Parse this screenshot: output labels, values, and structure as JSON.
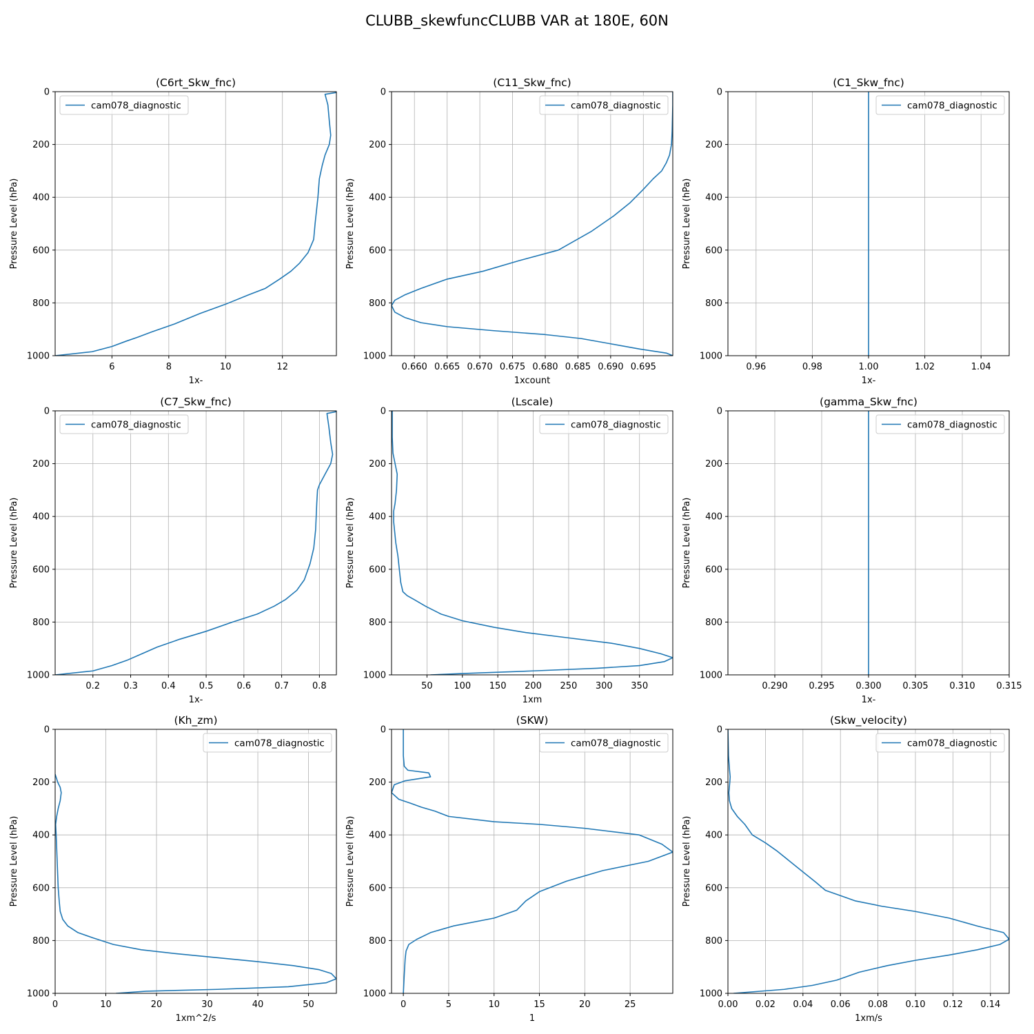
{
  "figure": {
    "title": "CLUBB_skewfuncCLUBB VAR at 180E, 60N"
  },
  "colors": {
    "series": "#1f77b4",
    "grid": "#b0b0b0",
    "legend_border": "#cccccc"
  },
  "chart_data": [
    {
      "type": "line",
      "title": "(C6rt_Skw_fnc)",
      "xlabel": "1x-",
      "ylabel": "Pressure Level (hPa)",
      "xlim": [
        4.0,
        13.9
      ],
      "ylim": [
        1000,
        0
      ],
      "y_inverted": true,
      "grid": true,
      "legend_position": "upper left",
      "xticks": [
        6,
        8,
        10,
        12
      ],
      "xtick_labels": [
        "6",
        "8",
        "10",
        "12"
      ],
      "yticks": [
        0,
        200,
        400,
        600,
        800,
        1000
      ],
      "ytick_labels": [
        "0",
        "200",
        "400",
        "600",
        "800",
        "1000"
      ],
      "series": [
        {
          "name": "cam078_diagnostic",
          "x": [
            13.9,
            13.5,
            13.6,
            13.65,
            13.7,
            13.65,
            13.5,
            13.4,
            13.3,
            13.25,
            13.2,
            13.15,
            13.1,
            12.9,
            12.6,
            12.3,
            11.9,
            11.4,
            10.8,
            10.0,
            9.1,
            8.2,
            7.4,
            6.9,
            6.5,
            6.0,
            5.3,
            4.0
          ],
          "y": [
            3,
            10,
            50,
            110,
            165,
            200,
            240,
            280,
            330,
            400,
            450,
            500,
            560,
            610,
            650,
            680,
            710,
            745,
            770,
            805,
            840,
            880,
            910,
            930,
            945,
            965,
            985,
            1000
          ]
        }
      ]
    },
    {
      "type": "line",
      "title": "(C11_Skw_fnc)",
      "xlabel": "1xcount",
      "ylabel": "Pressure Level (hPa)",
      "xlim": [
        0.6565,
        0.6995
      ],
      "ylim": [
        1000,
        0
      ],
      "y_inverted": true,
      "grid": true,
      "legend_position": "upper right",
      "xticks": [
        0.66,
        0.665,
        0.67,
        0.675,
        0.68,
        0.685,
        0.69,
        0.695
      ],
      "xtick_labels": [
        "0.660",
        "0.665",
        "0.670",
        "0.675",
        "0.680",
        "0.685",
        "0.690",
        "0.695"
      ],
      "yticks": [
        0,
        200,
        400,
        600,
        800,
        1000
      ],
      "ytick_labels": [
        "0",
        "200",
        "400",
        "600",
        "800",
        "1000"
      ],
      "series": [
        {
          "name": "cam078_diagnostic",
          "x": [
            0.6995,
            0.6995,
            0.6994,
            0.6993,
            0.699,
            0.6985,
            0.6978,
            0.6965,
            0.695,
            0.693,
            0.6905,
            0.687,
            0.682,
            0.676,
            0.6705,
            0.665,
            0.661,
            0.6585,
            0.657,
            0.6565,
            0.657,
            0.6585,
            0.661,
            0.665,
            0.672,
            0.68,
            0.6855,
            0.69,
            0.6945,
            0.6985,
            0.6995
          ],
          "y": [
            0,
            50,
            150,
            200,
            240,
            270,
            300,
            330,
            370,
            420,
            470,
            530,
            600,
            640,
            680,
            710,
            745,
            770,
            790,
            810,
            835,
            855,
            875,
            890,
            905,
            920,
            935,
            955,
            975,
            990,
            1000
          ]
        }
      ]
    },
    {
      "type": "line",
      "title": "(C1_Skw_fnc)",
      "xlabel": "1x-",
      "ylabel": "Pressure Level (hPa)",
      "xlim": [
        0.95,
        1.05
      ],
      "ylim": [
        1000,
        0
      ],
      "y_inverted": true,
      "grid": true,
      "legend_position": "upper right",
      "xticks": [
        0.96,
        0.98,
        1.0,
        1.02,
        1.04
      ],
      "xtick_labels": [
        "0.96",
        "0.98",
        "1.00",
        "1.02",
        "1.04"
      ],
      "yticks": [
        0,
        200,
        400,
        600,
        800,
        1000
      ],
      "ytick_labels": [
        "0",
        "200",
        "400",
        "600",
        "800",
        "1000"
      ],
      "series": [
        {
          "name": "cam078_diagnostic",
          "x": [
            1.0,
            1.0
          ],
          "y": [
            0,
            1000
          ]
        }
      ]
    },
    {
      "type": "line",
      "title": "(C7_Skw_fnc)",
      "xlabel": "1x-",
      "ylabel": "Pressure Level (hPa)",
      "xlim": [
        0.1,
        0.845
      ],
      "ylim": [
        1000,
        0
      ],
      "y_inverted": true,
      "grid": true,
      "legend_position": "upper left",
      "xticks": [
        0.2,
        0.3,
        0.4,
        0.5,
        0.6,
        0.7,
        0.8
      ],
      "xtick_labels": [
        "0.2",
        "0.3",
        "0.4",
        "0.5",
        "0.6",
        "0.7",
        "0.8"
      ],
      "yticks": [
        0,
        200,
        400,
        600,
        800,
        1000
      ],
      "ytick_labels": [
        "0",
        "200",
        "400",
        "600",
        "800",
        "1000"
      ],
      "series": [
        {
          "name": "cam078_diagnostic",
          "x": [
            0.845,
            0.82,
            0.825,
            0.83,
            0.835,
            0.83,
            0.815,
            0.8,
            0.795,
            0.793,
            0.79,
            0.785,
            0.775,
            0.76,
            0.74,
            0.71,
            0.68,
            0.635,
            0.57,
            0.5,
            0.43,
            0.37,
            0.33,
            0.29,
            0.25,
            0.2,
            0.1
          ],
          "y": [
            3,
            10,
            60,
            120,
            165,
            200,
            240,
            280,
            300,
            350,
            450,
            520,
            580,
            640,
            680,
            715,
            740,
            770,
            800,
            835,
            865,
            895,
            920,
            945,
            965,
            985,
            1000
          ]
        }
      ]
    },
    {
      "type": "line",
      "title": "(Lscale)",
      "xlabel": "1xm",
      "ylabel": "Pressure Level (hPa)",
      "xlim": [
        0,
        397
      ],
      "ylim": [
        1000,
        0
      ],
      "y_inverted": true,
      "grid": true,
      "legend_position": "upper right",
      "xticks": [
        50,
        100,
        150,
        200,
        250,
        300,
        350
      ],
      "xtick_labels": [
        "50",
        "100",
        "150",
        "200",
        "250",
        "300",
        "350"
      ],
      "yticks": [
        0,
        200,
        400,
        600,
        800,
        1000
      ],
      "ytick_labels": [
        "0",
        "200",
        "400",
        "600",
        "800",
        "1000"
      ],
      "series": [
        {
          "name": "cam078_diagnostic",
          "x": [
            1,
            1,
            1,
            2,
            5,
            8,
            7,
            5,
            3,
            3,
            6,
            9,
            11,
            13,
            16,
            22,
            32,
            48,
            70,
            100,
            145,
            190,
            250,
            310,
            350,
            380,
            397,
            385,
            350,
            290,
            200,
            100,
            55
          ],
          "y": [
            0,
            50,
            100,
            160,
            200,
            240,
            300,
            350,
            380,
            420,
            500,
            550,
            600,
            650,
            685,
            700,
            715,
            740,
            770,
            795,
            820,
            840,
            860,
            880,
            900,
            920,
            935,
            950,
            965,
            975,
            985,
            995,
            1000
          ]
        }
      ]
    },
    {
      "type": "line",
      "title": "(gamma_Skw_fnc)",
      "xlabel": "1x-",
      "ylabel": "Pressure Level (hPa)",
      "xlim": [
        0.285,
        0.315
      ],
      "ylim": [
        1000,
        0
      ],
      "y_inverted": true,
      "grid": true,
      "legend_position": "upper right",
      "xticks": [
        0.29,
        0.295,
        0.3,
        0.305,
        0.31,
        0.315
      ],
      "xtick_labels": [
        "0.290",
        "0.295",
        "0.300",
        "0.305",
        "0.310",
        "0.315"
      ],
      "yticks": [
        0,
        200,
        400,
        600,
        800,
        1000
      ],
      "ytick_labels": [
        "0",
        "200",
        "400",
        "600",
        "800",
        "1000"
      ],
      "series": [
        {
          "name": "cam078_diagnostic",
          "x": [
            0.3,
            0.3
          ],
          "y": [
            0,
            1000
          ]
        }
      ]
    },
    {
      "type": "line",
      "title": "(Kh_zm)",
      "xlabel": "1xm^2/s",
      "ylabel": "Pressure Level (hPa)",
      "xlim": [
        0,
        55.5
      ],
      "ylim": [
        1000,
        0
      ],
      "y_inverted": true,
      "grid": true,
      "legend_position": "upper right",
      "xticks": [
        0,
        10,
        20,
        30,
        40,
        50
      ],
      "xtick_labels": [
        "0",
        "10",
        "20",
        "30",
        "40",
        "50"
      ],
      "yticks": [
        0,
        200,
        400,
        600,
        800,
        1000
      ],
      "ytick_labels": [
        "0",
        "200",
        "400",
        "600",
        "800",
        "1000"
      ],
      "series": [
        {
          "name": "cam078_diagnostic",
          "x": [
            0,
            0.5,
            1.0,
            1.2,
            1.0,
            0.6,
            0.3,
            0.1,
            0.2,
            0.4,
            0.6,
            0.8,
            1.0,
            1.5,
            2.5,
            4.5,
            7.5,
            11.5,
            17,
            24,
            32,
            40,
            47,
            52,
            54.5,
            55.5,
            53.5,
            46,
            32,
            18,
            12
          ],
          "y": [
            170,
            200,
            220,
            240,
            270,
            300,
            330,
            360,
            400,
            500,
            600,
            650,
            690,
            720,
            745,
            770,
            790,
            815,
            835,
            850,
            865,
            880,
            895,
            910,
            925,
            945,
            960,
            975,
            985,
            992,
            1000
          ]
        }
      ]
    },
    {
      "type": "line",
      "title": "(SKW)",
      "xlabel": "1",
      "ylabel": "Pressure Level (hPa)",
      "xlim": [
        -1.3,
        29.7
      ],
      "ylim": [
        1000,
        0
      ],
      "y_inverted": true,
      "grid": true,
      "legend_position": "upper right",
      "xticks": [
        0,
        5,
        10,
        15,
        20,
        25
      ],
      "xtick_labels": [
        "0",
        "5",
        "10",
        "15",
        "20",
        "25"
      ],
      "yticks": [
        0,
        200,
        400,
        600,
        800,
        1000
      ],
      "ytick_labels": [
        "0",
        "200",
        "400",
        "600",
        "800",
        "1000"
      ],
      "series": [
        {
          "name": "cam078_diagnostic",
          "x": [
            0,
            0,
            0.1,
            0.5,
            2.8,
            3.0,
            0.2,
            -1.0,
            -1.3,
            -0.5,
            0.8,
            2.0,
            3.5,
            5.0,
            10.0,
            15.0,
            20.0,
            26.0,
            28.5,
            29.7,
            27.0,
            22.0,
            18.0,
            15.0,
            13.5,
            12.5,
            10.0,
            5.5,
            3.0,
            1.5,
            0.6,
            0.3,
            0.2,
            0.1,
            0
          ],
          "y": [
            0,
            100,
            140,
            155,
            165,
            180,
            195,
            210,
            240,
            265,
            280,
            295,
            310,
            330,
            350,
            360,
            375,
            400,
            435,
            465,
            500,
            535,
            575,
            615,
            650,
            685,
            715,
            745,
            770,
            795,
            815,
            840,
            870,
            930,
            1000
          ]
        }
      ]
    },
    {
      "type": "line",
      "title": "(Skw_velocity)",
      "xlabel": "1xm/s",
      "ylabel": "Pressure Level (hPa)",
      "xlim": [
        0,
        0.15
      ],
      "ylim": [
        1000,
        0
      ],
      "y_inverted": true,
      "grid": true,
      "legend_position": "upper right",
      "xticks": [
        0.0,
        0.02,
        0.04,
        0.06,
        0.08,
        0.1,
        0.12,
        0.14
      ],
      "xtick_labels": [
        "0.00",
        "0.02",
        "0.04",
        "0.06",
        "0.08",
        "0.10",
        "0.12",
        "0.14"
      ],
      "yticks": [
        0,
        200,
        400,
        600,
        800,
        1000
      ],
      "ytick_labels": [
        "0",
        "200",
        "400",
        "600",
        "800",
        "1000"
      ],
      "series": [
        {
          "name": "cam078_diagnostic",
          "x": [
            0,
            0.0003,
            0.0008,
            0.0012,
            0.001,
            0.0005,
            0.0008,
            0.002,
            0.005,
            0.009,
            0.013,
            0.02,
            0.026,
            0.033,
            0.04,
            0.047,
            0.052,
            0.06,
            0.068,
            0.082,
            0.1,
            0.118,
            0.133,
            0.147,
            0.15,
            0.145,
            0.133,
            0.118,
            0.1,
            0.085,
            0.07,
            0.058,
            0.045,
            0.03,
            0.003
          ],
          "y": [
            0,
            100,
            150,
            180,
            200,
            240,
            270,
            300,
            330,
            360,
            400,
            430,
            460,
            500,
            540,
            580,
            610,
            630,
            650,
            670,
            690,
            715,
            745,
            770,
            795,
            815,
            835,
            855,
            875,
            895,
            920,
            950,
            970,
            985,
            1000
          ]
        }
      ]
    }
  ]
}
